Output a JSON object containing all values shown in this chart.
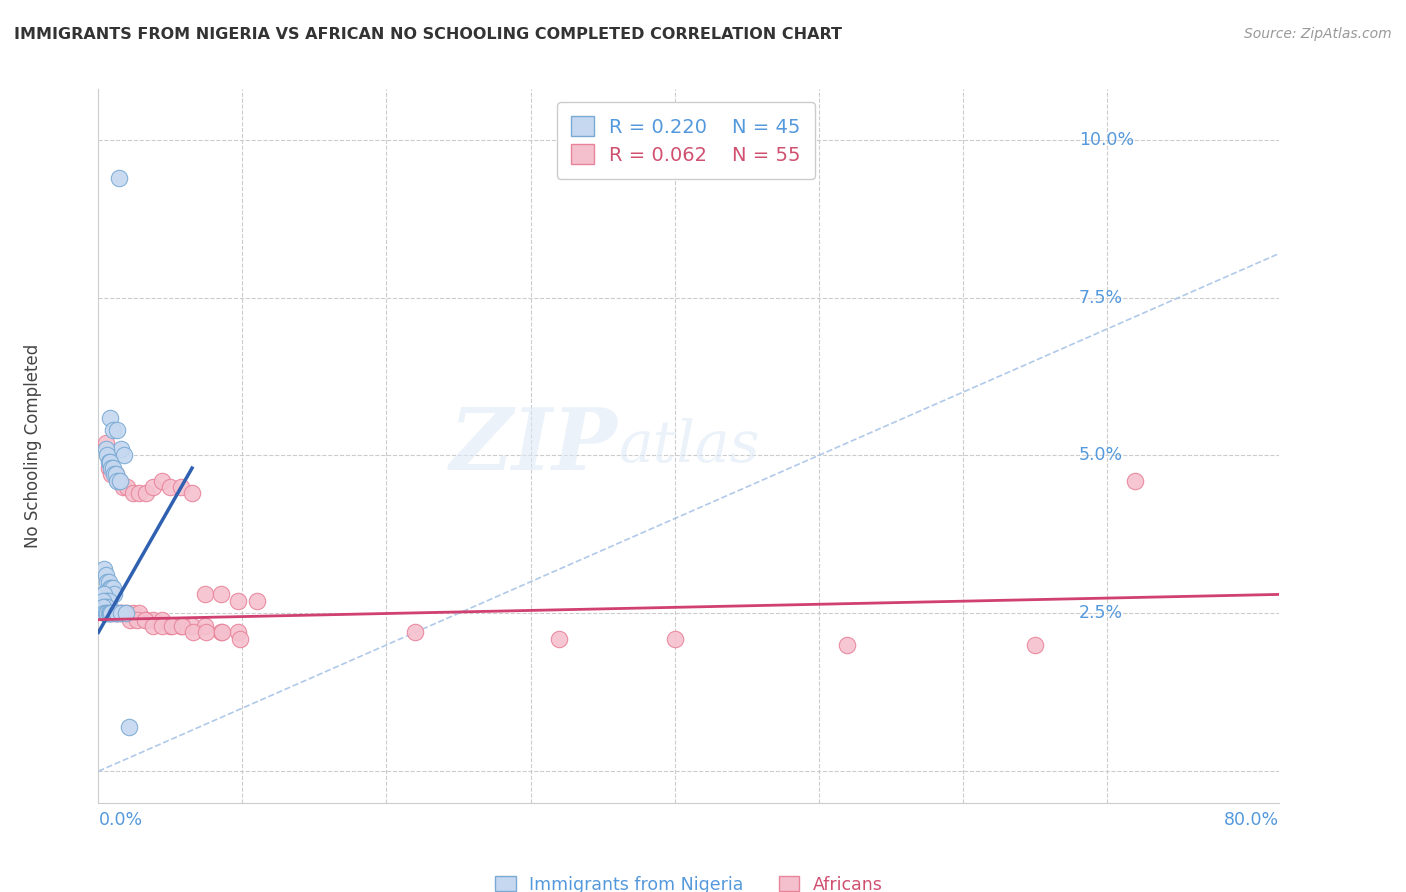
{
  "title": "IMMIGRANTS FROM NIGERIA VS AFRICAN NO SCHOOLING COMPLETED CORRELATION CHART",
  "source": "Source: ZipAtlas.com",
  "ylabel": "No Schooling Completed",
  "xlim": [
    0.0,
    0.82
  ],
  "ylim": [
    -0.005,
    0.108
  ],
  "yticks": [
    0.0,
    0.025,
    0.05,
    0.075,
    0.1
  ],
  "ytick_labels": [
    "",
    "2.5%",
    "5.0%",
    "7.5%",
    "10.0%"
  ],
  "legend_blue_r": "R = 0.220",
  "legend_blue_n": "N = 45",
  "legend_pink_r": "R = 0.062",
  "legend_pink_n": "N = 55",
  "blue_fill": "#c5d8f0",
  "blue_edge": "#7aaad4",
  "pink_fill": "#f5c0ce",
  "pink_edge": "#e8849a",
  "blue_line_color": "#3060b0",
  "pink_line_color": "#d04070",
  "diag_line_color": "#a8c4e8",
  "blue_scatter_x": [
    0.014,
    0.008,
    0.01,
    0.013,
    0.016,
    0.018,
    0.005,
    0.006,
    0.007,
    0.008,
    0.009,
    0.01,
    0.011,
    0.012,
    0.013,
    0.015,
    0.004,
    0.005,
    0.006,
    0.007,
    0.008,
    0.009,
    0.01,
    0.011,
    0.003,
    0.004,
    0.005,
    0.006,
    0.007,
    0.003,
    0.004,
    0.005,
    0.006,
    0.003,
    0.004,
    0.005,
    0.006,
    0.007,
    0.008,
    0.009,
    0.012,
    0.013,
    0.016,
    0.019,
    0.021
  ],
  "blue_scatter_y": [
    0.094,
    0.056,
    0.054,
    0.054,
    0.051,
    0.05,
    0.051,
    0.05,
    0.049,
    0.049,
    0.048,
    0.048,
    0.047,
    0.047,
    0.046,
    0.046,
    0.032,
    0.031,
    0.03,
    0.03,
    0.029,
    0.029,
    0.029,
    0.028,
    0.028,
    0.028,
    0.027,
    0.027,
    0.027,
    0.027,
    0.026,
    0.026,
    0.026,
    0.026,
    0.025,
    0.025,
    0.025,
    0.025,
    0.025,
    0.025,
    0.025,
    0.025,
    0.025,
    0.025,
    0.007
  ],
  "pink_scatter_x": [
    0.005,
    0.007,
    0.009,
    0.012,
    0.014,
    0.017,
    0.02,
    0.024,
    0.028,
    0.033,
    0.038,
    0.044,
    0.05,
    0.057,
    0.065,
    0.074,
    0.085,
    0.097,
    0.11,
    0.013,
    0.016,
    0.02,
    0.024,
    0.028,
    0.033,
    0.038,
    0.044,
    0.05,
    0.057,
    0.065,
    0.074,
    0.085,
    0.097,
    0.008,
    0.01,
    0.012,
    0.015,
    0.018,
    0.022,
    0.027,
    0.032,
    0.038,
    0.044,
    0.051,
    0.058,
    0.066,
    0.075,
    0.086,
    0.098,
    0.22,
    0.32,
    0.4,
    0.52,
    0.65,
    0.72
  ],
  "pink_scatter_y": [
    0.052,
    0.048,
    0.047,
    0.047,
    0.046,
    0.045,
    0.045,
    0.044,
    0.044,
    0.044,
    0.045,
    0.046,
    0.045,
    0.045,
    0.044,
    0.028,
    0.028,
    0.027,
    0.027,
    0.025,
    0.025,
    0.025,
    0.025,
    0.025,
    0.024,
    0.024,
    0.024,
    0.023,
    0.023,
    0.023,
    0.023,
    0.022,
    0.022,
    0.025,
    0.025,
    0.025,
    0.025,
    0.025,
    0.024,
    0.024,
    0.024,
    0.023,
    0.023,
    0.023,
    0.023,
    0.022,
    0.022,
    0.022,
    0.021,
    0.022,
    0.021,
    0.021,
    0.02,
    0.02,
    0.046
  ],
  "blue_line_x": [
    0.0,
    0.065
  ],
  "blue_line_y": [
    0.022,
    0.048
  ],
  "pink_line_x": [
    0.0,
    0.82
  ],
  "pink_line_y": [
    0.024,
    0.028
  ],
  "diag_line_x": [
    0.0,
    0.82
  ],
  "diag_line_y": [
    0.0,
    0.082
  ]
}
